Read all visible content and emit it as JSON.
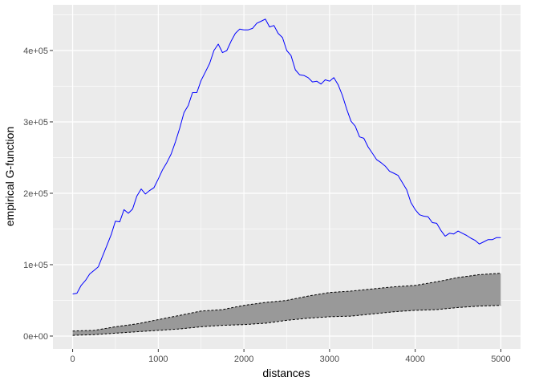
{
  "chart_data": {
    "type": "line",
    "title": "",
    "xlabel": "distances",
    "ylabel": "empirical G-function",
    "xlim": [
      -230,
      5230
    ],
    "ylim": [
      -18000,
      464000
    ],
    "x_ticks": [
      0,
      1000,
      2000,
      3000,
      4000,
      5000
    ],
    "x_tick_labels": [
      "0",
      "1000",
      "2000",
      "3000",
      "4000",
      "5000"
    ],
    "y_ticks": [
      0,
      100000,
      200000,
      300000,
      400000
    ],
    "y_tick_labels": [
      "0e+00",
      "1e+05",
      "2e+05",
      "3e+05",
      "4e+05"
    ],
    "grid": true,
    "legend": "none",
    "colors": {
      "panel": "#ebebeb",
      "grid_major": "#ffffff",
      "line": "#0000ff",
      "envelope_fill": "#999999",
      "envelope_border": "#000000"
    },
    "series": [
      {
        "x": [
          0,
          50,
          100,
          150,
          200,
          250,
          300,
          350,
          400,
          450,
          500,
          550,
          600,
          650,
          700,
          750,
          800,
          850,
          900,
          950,
          1000,
          1050,
          1100,
          1150,
          1200,
          1250,
          1300,
          1350,
          1400,
          1450,
          1500,
          1550,
          1600,
          1650,
          1700,
          1750,
          1800,
          1850,
          1900,
          1950,
          2000,
          2050,
          2100,
          2150,
          2200,
          2250,
          2300,
          2350,
          2400,
          2450,
          2500,
          2550,
          2600,
          2650,
          2700,
          2750,
          2800,
          2850,
          2900,
          2950,
          3000,
          3050,
          3100,
          3150,
          3200,
          3250,
          3300,
          3350,
          3400,
          3450,
          3500,
          3550,
          3600,
          3650,
          3700,
          3750,
          3800,
          3850,
          3900,
          3950,
          4000,
          4050,
          4100,
          4150,
          4200,
          4250,
          4300,
          4350,
          4400,
          4450,
          4500,
          4550,
          4600,
          4650,
          4700,
          4750,
          4800,
          4850,
          4900,
          4950,
          5000
        ],
        "values": [
          59000,
          60000,
          71000,
          78000,
          87000,
          92000,
          97000,
          112000,
          127000,
          142000,
          161000,
          160000,
          177000,
          172000,
          178000,
          196000,
          206000,
          199000,
          204000,
          208000,
          220000,
          233000,
          243000,
          255000,
          272000,
          291000,
          313000,
          323000,
          341000,
          341000,
          358000,
          370000,
          382000,
          400000,
          409000,
          397000,
          400000,
          413000,
          424000,
          430000,
          429000,
          429000,
          431000,
          438000,
          441000,
          444000,
          433000,
          435000,
          424000,
          418000,
          400000,
          393000,
          373000,
          366000,
          365000,
          362000,
          356000,
          357000,
          353000,
          359000,
          357000,
          362000,
          352000,
          337000,
          318000,
          301000,
          294000,
          279000,
          277000,
          265000,
          256000,
          247000,
          243000,
          238000,
          231000,
          228000,
          225000,
          215000,
          205000,
          187000,
          177000,
          170000,
          168000,
          167000,
          159000,
          158000,
          148000,
          140000,
          144000,
          143000,
          147000,
          144000,
          141000,
          137000,
          134000,
          129000,
          132000,
          135000,
          135000,
          138000,
          138000
        ]
      }
    ],
    "envelope": {
      "x": [
        0,
        250,
        500,
        750,
        1000,
        1250,
        1500,
        1750,
        2000,
        2250,
        2500,
        2750,
        3000,
        3250,
        3500,
        3750,
        4000,
        4250,
        4500,
        4750,
        5000
      ],
      "lower": [
        1000,
        2000,
        4000,
        6000,
        8000,
        10000,
        13000,
        15000,
        16000,
        18000,
        22000,
        25000,
        27000,
        28000,
        31000,
        34000,
        36000,
        37000,
        40000,
        42000,
        43000
      ],
      "upper": [
        7000,
        8000,
        13000,
        17000,
        23000,
        29000,
        35000,
        37000,
        43000,
        47000,
        50000,
        56000,
        61000,
        63000,
        66000,
        69000,
        71000,
        76000,
        82000,
        86000,
        88000
      ]
    }
  }
}
